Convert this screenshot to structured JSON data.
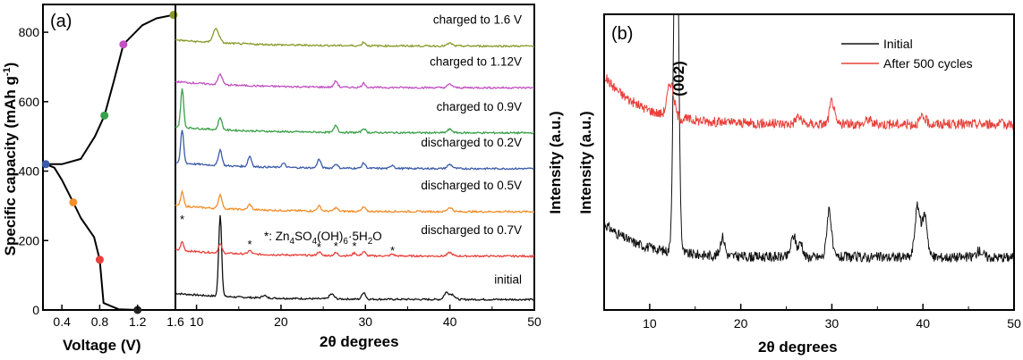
{
  "chart_data": [
    {
      "panel": "(a)",
      "type": "line",
      "xlabel": "Voltage (V)",
      "ylabel": "Specific capacity (mAh g⁻¹)",
      "xlim": [
        0.2,
        1.6
      ],
      "ylim": [
        0,
        880
      ],
      "xticks": [
        "0.4",
        "0.8",
        "1.2",
        "1.6"
      ],
      "yticks": [
        "0",
        "200",
        "400",
        "600",
        "800"
      ],
      "curve": [
        [
          1.2,
          0
        ],
        [
          1.0,
          2
        ],
        [
          0.84,
          20
        ],
        [
          0.8,
          145
        ],
        [
          0.74,
          210
        ],
        [
          0.6,
          265
        ],
        [
          0.52,
          310
        ],
        [
          0.4,
          375
        ],
        [
          0.32,
          410
        ],
        [
          0.23,
          420
        ],
        [
          0.4,
          420
        ],
        [
          0.6,
          435
        ],
        [
          0.75,
          500
        ],
        [
          0.85,
          560
        ],
        [
          0.95,
          660
        ],
        [
          1.05,
          765
        ],
        [
          1.25,
          820
        ],
        [
          1.4,
          840
        ],
        [
          1.58,
          850
        ]
      ],
      "markers": [
        {
          "x": 1.2,
          "y": 0,
          "color": "#222222"
        },
        {
          "x": 0.8,
          "y": 145,
          "color": "#e8403a"
        },
        {
          "x": 0.52,
          "y": 310,
          "color": "#f28e2b"
        },
        {
          "x": 0.23,
          "y": 420,
          "color": "#3a5ba8"
        },
        {
          "x": 0.85,
          "y": 560,
          "color": "#3aa04a"
        },
        {
          "x": 1.05,
          "y": 765,
          "color": "#c050c0"
        },
        {
          "x": 1.58,
          "y": 850,
          "color": "#8a9a2a"
        }
      ]
    },
    {
      "type": "line",
      "xlabel": "2θ degrees",
      "xlim": [
        7.5,
        50
      ],
      "xticks": [
        "1.6",
        "10",
        "20",
        "30",
        "40",
        "50"
      ],
      "series": [
        {
          "name": "initial",
          "color": "#111111",
          "baseline": 30,
          "peaks": [
            [
              12.8,
              235,
              0.25
            ],
            [
              18,
              8,
              0.3
            ],
            [
              26,
              14,
              0.4
            ],
            [
              29.8,
              20,
              0.3
            ],
            [
              39.6,
              20,
              0.4
            ],
            [
              40.3,
              14,
              0.4
            ]
          ]
        },
        {
          "name": "discharged to 0.7V",
          "color": "#e8403a",
          "baseline": 155,
          "peaks": [
            [
              8.3,
              25,
              0.25
            ],
            [
              12.8,
              25,
              0.3
            ],
            [
              16.3,
              10,
              0.3
            ],
            [
              24.5,
              10,
              0.3
            ],
            [
              26.5,
              8,
              0.3
            ],
            [
              28.7,
              8,
              0.3
            ],
            [
              29.8,
              12,
              0.3
            ],
            [
              33.2,
              5,
              0.3
            ],
            [
              40,
              10,
              0.4
            ]
          ]
        },
        {
          "name": "discharged to 0.5V",
          "color": "#f28e2b",
          "baseline": 283,
          "peaks": [
            [
              8.3,
              40,
              0.25
            ],
            [
              12.8,
              40,
              0.3
            ],
            [
              16.3,
              15,
              0.3
            ],
            [
              24.5,
              15,
              0.3
            ],
            [
              26.5,
              10,
              0.3
            ],
            [
              29.8,
              12,
              0.3
            ],
            [
              40,
              12,
              0.4
            ]
          ]
        },
        {
          "name": "discharged to 0.2V",
          "color": "#3a5ba8",
          "baseline": 407,
          "peaks": [
            [
              8.3,
              95,
              0.25
            ],
            [
              12.8,
              45,
              0.3
            ],
            [
              16.3,
              30,
              0.3
            ],
            [
              20.3,
              12,
              0.3
            ],
            [
              24.5,
              25,
              0.3
            ],
            [
              26.5,
              12,
              0.3
            ],
            [
              29.8,
              15,
              0.3
            ],
            [
              33.2,
              10,
              0.3
            ],
            [
              40,
              12,
              0.4
            ]
          ]
        },
        {
          "name": "charged to 0.9V",
          "color": "#3aa04a",
          "baseline": 510,
          "peaks": [
            [
              8.3,
              110,
              0.25
            ],
            [
              12.8,
              35,
              0.3
            ],
            [
              26.5,
              20,
              0.3
            ],
            [
              29.8,
              12,
              0.3
            ],
            [
              40,
              10,
              0.4
            ]
          ]
        },
        {
          "name": "charged to 1.12V",
          "color": "#c050c0",
          "baseline": 640,
          "peaks": [
            [
              12.8,
              30,
              0.35
            ],
            [
              26.5,
              18,
              0.3
            ],
            [
              29.8,
              12,
              0.3
            ],
            [
              40,
              10,
              0.4
            ]
          ]
        },
        {
          "name": "charged to 1.6 V",
          "color": "#8a9a2a",
          "baseline": 760,
          "peaks": [
            [
              12.3,
              40,
              0.5
            ],
            [
              29.8,
              10,
              0.3
            ],
            [
              40,
              8,
              0.4
            ]
          ]
        }
      ],
      "annotation": "*: Zn₄SO₄(OH)₆·5H₂O",
      "star_positions": [
        8.3,
        16.3,
        24.5,
        26.5,
        28.7,
        33.2
      ]
    },
    {
      "panel": "(b)",
      "type": "line",
      "xlabel": "2θ degrees",
      "ylabel": "Intensity (a.u.)",
      "xlim": [
        5,
        50
      ],
      "xticks": [
        "10",
        "20",
        "30",
        "40",
        "50"
      ],
      "peak_label": "(002)",
      "legend_position": "top-right",
      "series": [
        {
          "name": "Initial",
          "color": "#111111",
          "baseline": 125,
          "decay": 80,
          "peaks": [
            [
              12.9,
              1000,
              0.35
            ],
            [
              18,
              45,
              0.35
            ],
            [
              25.8,
              50,
              0.4
            ],
            [
              26.6,
              35,
              0.3
            ],
            [
              29.7,
              115,
              0.35
            ],
            [
              39.4,
              120,
              0.4
            ],
            [
              40.2,
              100,
              0.4
            ],
            [
              46.2,
              15,
              0.5
            ]
          ]
        },
        {
          "name": "After 500 cycles",
          "color": "#e8403a",
          "baseline": 440,
          "decay": 115,
          "peaks": [
            [
              12.3,
              80,
              0.5
            ],
            [
              26.3,
              18,
              0.4
            ],
            [
              30,
              55,
              0.35
            ],
            [
              34,
              12,
              0.4
            ],
            [
              40,
              15,
              0.5
            ]
          ]
        }
      ]
    }
  ]
}
